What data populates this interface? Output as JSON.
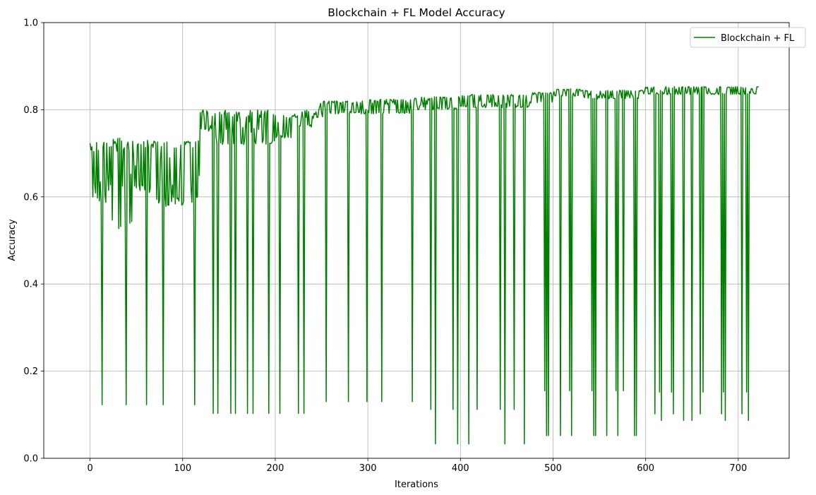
{
  "chart_data": {
    "type": "line",
    "title": "Blockchain + FL Model Accuracy",
    "xlabel": "Iterations",
    "ylabel": "Accuracy",
    "xlim": [
      -50,
      755
    ],
    "ylim": [
      0.0,
      1.0
    ],
    "x_ticks": [
      0,
      100,
      200,
      300,
      400,
      500,
      600,
      700
    ],
    "y_ticks": [
      0.0,
      0.2,
      0.4,
      0.6,
      0.8,
      1.0
    ],
    "x_tick_labels": [
      "0",
      "100",
      "200",
      "300",
      "400",
      "500",
      "600",
      "700"
    ],
    "y_tick_labels": [
      "0.0",
      "0.2",
      "0.4",
      "0.6",
      "0.8",
      "1.0"
    ],
    "grid": true,
    "legend_position": "top-right",
    "series": [
      {
        "name": "Blockchain + FL",
        "color": "#008000",
        "dips": [
          [
            13,
            0.123
          ],
          [
            39,
            0.123
          ],
          [
            61,
            0.123
          ],
          [
            79,
            0.123
          ],
          [
            113,
            0.123
          ],
          [
            133,
            0.103
          ],
          [
            138,
            0.103
          ],
          [
            152,
            0.103
          ],
          [
            157,
            0.103
          ],
          [
            170,
            0.103
          ],
          [
            176,
            0.103
          ],
          [
            193,
            0.103
          ],
          [
            205,
            0.103
          ],
          [
            225,
            0.103
          ],
          [
            231,
            0.103
          ],
          [
            255,
            0.13
          ],
          [
            279,
            0.13
          ],
          [
            299,
            0.13
          ],
          [
            315,
            0.13
          ],
          [
            348,
            0.13
          ],
          [
            368,
            0.112
          ],
          [
            373,
            0.033
          ],
          [
            392,
            0.112
          ],
          [
            397,
            0.033
          ],
          [
            409,
            0.033
          ],
          [
            418,
            0.112
          ],
          [
            443,
            0.112
          ],
          [
            448,
            0.033
          ],
          [
            458,
            0.112
          ],
          [
            469,
            0.033
          ],
          [
            491,
            0.155
          ],
          [
            493,
            0.052
          ],
          [
            495,
            0.052
          ],
          [
            508,
            0.052
          ],
          [
            518,
            0.155
          ],
          [
            520,
            0.052
          ],
          [
            542,
            0.155
          ],
          [
            544,
            0.052
          ],
          [
            546,
            0.052
          ],
          [
            558,
            0.052
          ],
          [
            568,
            0.155
          ],
          [
            570,
            0.052
          ],
          [
            576,
            0.155
          ],
          [
            588,
            0.052
          ],
          [
            590,
            0.052
          ],
          [
            610,
            0.102
          ],
          [
            615,
            0.152
          ],
          [
            617,
            0.087
          ],
          [
            628,
            0.152
          ],
          [
            630,
            0.102
          ],
          [
            641,
            0.087
          ],
          [
            650,
            0.087
          ],
          [
            659,
            0.102
          ],
          [
            662,
            0.152
          ],
          [
            682,
            0.102
          ],
          [
            684,
            0.152
          ],
          [
            686,
            0.087
          ],
          [
            704,
            0.102
          ],
          [
            709,
            0.152
          ],
          [
            711,
            0.087
          ]
        ],
        "segments": [
          {
            "x_start": 0,
            "x_end": 12,
            "low": 0.58,
            "high": 0.73
          },
          {
            "x_start": 12,
            "x_end": 24,
            "low": 0.58,
            "high": 0.735
          },
          {
            "x_start": 24,
            "x_end": 46,
            "low": 0.523,
            "high": 0.735
          },
          {
            "x_start": 46,
            "x_end": 62,
            "low": 0.61,
            "high": 0.735
          },
          {
            "x_start": 62,
            "x_end": 72,
            "low": 0.61,
            "high": 0.73
          },
          {
            "x_start": 72,
            "x_end": 116,
            "low": 0.578,
            "high": 0.735
          },
          {
            "x_start": 116,
            "x_end": 119,
            "low": 0.578,
            "high": 0.73
          },
          {
            "x_start": 119,
            "x_end": 136,
            "low": 0.75,
            "high": 0.8
          },
          {
            "x_start": 136,
            "x_end": 200,
            "low": 0.72,
            "high": 0.8
          },
          {
            "x_start": 200,
            "x_end": 225,
            "low": 0.735,
            "high": 0.79
          },
          {
            "x_start": 225,
            "x_end": 240,
            "low": 0.76,
            "high": 0.8
          },
          {
            "x_start": 240,
            "x_end": 258,
            "low": 0.78,
            "high": 0.82
          },
          {
            "x_start": 258,
            "x_end": 300,
            "low": 0.79,
            "high": 0.82
          },
          {
            "x_start": 300,
            "x_end": 350,
            "low": 0.79,
            "high": 0.825
          },
          {
            "x_start": 350,
            "x_end": 400,
            "low": 0.8,
            "high": 0.83
          },
          {
            "x_start": 400,
            "x_end": 475,
            "low": 0.805,
            "high": 0.835
          },
          {
            "x_start": 475,
            "x_end": 500,
            "low": 0.815,
            "high": 0.84
          },
          {
            "x_start": 500,
            "x_end": 530,
            "low": 0.83,
            "high": 0.848
          },
          {
            "x_start": 530,
            "x_end": 600,
            "low": 0.825,
            "high": 0.845
          },
          {
            "x_start": 600,
            "x_end": 722,
            "low": 0.835,
            "high": 0.853
          }
        ]
      }
    ]
  }
}
